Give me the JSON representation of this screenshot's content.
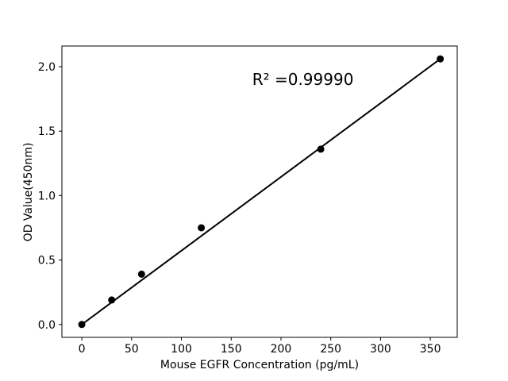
{
  "figure": {
    "background": "#ffffff",
    "foreground": "#000000"
  },
  "chart_data": {
    "type": "scatter",
    "title": "",
    "xlabel": "Mouse EGFR Concentration (pg/mL)",
    "ylabel": "OD Value(450nm)",
    "x": [
      0,
      30,
      60,
      120,
      240,
      360
    ],
    "y": [
      0.0,
      0.19,
      0.39,
      0.75,
      1.36,
      2.06
    ],
    "fit_line": {
      "x": [
        0,
        360
      ],
      "y": [
        0.0,
        2.06
      ]
    },
    "annotation": {
      "text": "R² =0.99990",
      "x": 222,
      "y": 1.9
    },
    "xlim": [
      -20,
      377
    ],
    "ylim": [
      -0.1,
      2.16
    ],
    "xticks": [
      0,
      50,
      100,
      150,
      200,
      250,
      300,
      350
    ],
    "xtick_labels": [
      "0",
      "50",
      "100",
      "150",
      "200",
      "250",
      "300",
      "350"
    ],
    "yticks": [
      0.0,
      0.5,
      1.0,
      1.5,
      2.0
    ],
    "ytick_labels": [
      "0.0",
      "0.5",
      "1.0",
      "1.5",
      "2.0"
    ],
    "grid": false,
    "legend": null,
    "marker_color": "#000000",
    "line_color": "#000000",
    "marker_radius": 4.5,
    "line_width": 2
  }
}
